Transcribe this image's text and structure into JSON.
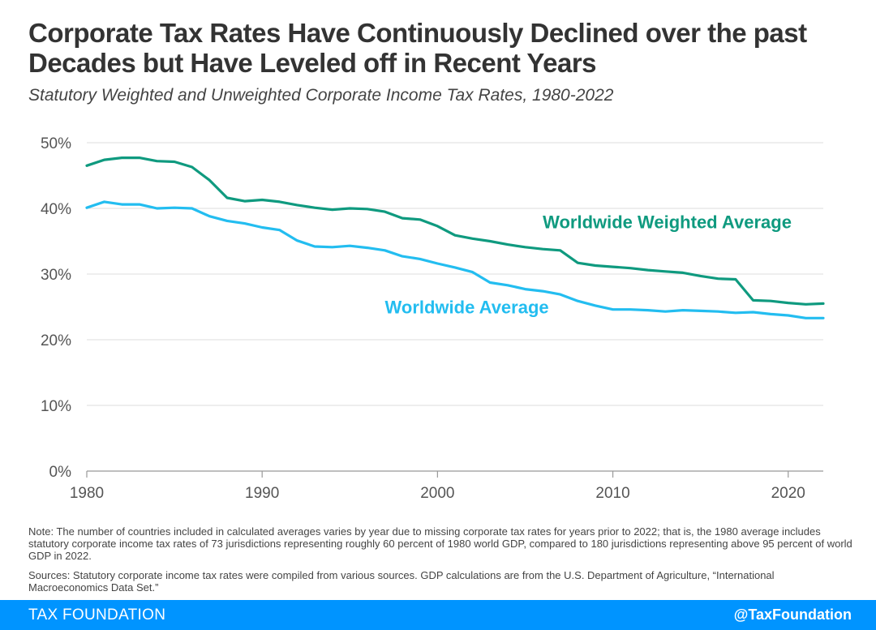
{
  "header": {
    "title": "Corporate Tax Rates Have Continuously Declined over the past Decades but Have Leveled off in Recent Years",
    "subtitle": "Statutory Weighted and Unweighted Corporate Income Tax Rates, 1980-2022"
  },
  "chart_data": {
    "type": "line",
    "x": [
      1980,
      1981,
      1982,
      1983,
      1984,
      1985,
      1986,
      1987,
      1988,
      1989,
      1990,
      1991,
      1992,
      1993,
      1994,
      1995,
      1996,
      1997,
      1998,
      1999,
      2000,
      2001,
      2002,
      2003,
      2004,
      2005,
      2006,
      2007,
      2008,
      2009,
      2010,
      2011,
      2012,
      2013,
      2014,
      2015,
      2016,
      2017,
      2018,
      2019,
      2020,
      2021,
      2022
    ],
    "series": [
      {
        "name": "Worldwide Weighted Average",
        "color": "#0f9a7f",
        "values": [
          46.5,
          47.4,
          47.7,
          47.7,
          47.2,
          47.1,
          46.3,
          44.3,
          41.6,
          41.1,
          41.3,
          41.0,
          40.5,
          40.1,
          39.8,
          40.0,
          39.9,
          39.5,
          38.5,
          38.3,
          37.3,
          35.9,
          35.4,
          35.0,
          34.5,
          34.1,
          33.8,
          33.6,
          31.7,
          31.3,
          31.1,
          30.9,
          30.6,
          30.4,
          30.2,
          29.7,
          29.3,
          29.2,
          26.0,
          25.9,
          25.6,
          25.4,
          25.5
        ]
      },
      {
        "name": "Worldwide Average",
        "color": "#23bdf0",
        "values": [
          40.1,
          41.0,
          40.6,
          40.6,
          40.0,
          40.1,
          40.0,
          38.8,
          38.1,
          37.7,
          37.1,
          36.7,
          35.1,
          34.2,
          34.1,
          34.3,
          34.0,
          33.6,
          32.7,
          32.3,
          31.6,
          31.0,
          30.3,
          28.7,
          28.3,
          27.7,
          27.4,
          26.9,
          25.9,
          25.2,
          24.6,
          24.6,
          24.5,
          24.3,
          24.5,
          24.4,
          24.3,
          24.1,
          24.2,
          23.9,
          23.7,
          23.3,
          23.3
        ]
      }
    ],
    "title": "Statutory Weighted and Unweighted Corporate Income Tax Rates, 1980-2022",
    "xlabel": "",
    "ylabel": "",
    "xlim": [
      1980,
      2022
    ],
    "ylim": [
      0,
      50
    ],
    "xticks": [
      1980,
      1990,
      2000,
      2010,
      2020
    ],
    "yticks": [
      0,
      10,
      20,
      30,
      40,
      50
    ],
    "ytick_labels": [
      "0%",
      "10%",
      "20%",
      "30%",
      "40%",
      "50%"
    ],
    "grid": true,
    "annotations": [
      {
        "text": "Worldwide Weighted Average",
        "x": 2006,
        "y": 37.0,
        "series": "Worldwide Weighted Average"
      },
      {
        "text": "Worldwide Average",
        "x": 1997,
        "y": 24.0,
        "series": "Worldwide Average"
      }
    ]
  },
  "footnotes": {
    "note": "Note: The number of countries included in calculated averages varies by year due to missing corporate tax rates for years prior to 2022; that is, the 1980 average includes statutory corporate income tax rates of 73 jurisdictions representing roughly 60 percent of 1980 world GDP, compared to 180 jurisdictions representing above 95 percent of world GDP in 2022.",
    "sources": "Sources: Statutory corporate income tax rates were compiled from various sources. GDP calculations are from the U.S. Department of Agriculture, “International Macroeconomics Data Set.”"
  },
  "footer": {
    "brand": "TAX FOUNDATION",
    "handle": "@TaxFoundation",
    "bar_color": "#0094ff"
  }
}
